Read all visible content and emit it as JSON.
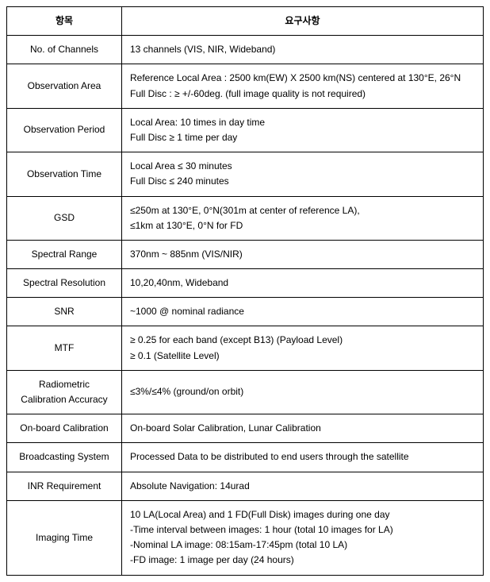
{
  "table": {
    "headers": [
      "항목",
      "요구사항"
    ],
    "rows": [
      {
        "label": "No. of Channels",
        "value": "13 channels (VIS, NIR, Wideband)"
      },
      {
        "label": "Observation Area",
        "value": "Reference Local Area : 2500 km(EW) X 2500 km(NS)   centered at 130°E, 26°N\nFull Disc : ≥ +/-60deg. (full image quality is not required)"
      },
      {
        "label": "Observation Period",
        "value": "Local Area: 10 times in day time\nFull Disc ≥ 1 time   per day"
      },
      {
        "label": "Observation Time",
        "value": "Local Area ≤ 30   minutes\nFull Disc ≤ 240   minutes"
      },
      {
        "label": "GSD",
        "value": "≤250m at   130°E, 0°N(301m at center of reference LA),\n≤1km at   130°E, 0°N for FD"
      },
      {
        "label": "Spectral Range",
        "value": "370nm ~ 885nm (VIS/NIR)"
      },
      {
        "label": "Spectral Resolution",
        "value": "10,20,40nm, Wideband"
      },
      {
        "label": "SNR",
        "value": "~1000 @ nominal radiance"
      },
      {
        "label": "MTF",
        "value": "≥ 0.25 for   each band (except B13) (Payload Level)\n≥ 0.1   (Satellite Level)"
      },
      {
        "label": "Radiometric\nCalibration Accuracy",
        "value": "≤3%/≤4% (ground/on orbit)"
      },
      {
        "label": "On-board Calibration",
        "value": "On-board Solar Calibration, Lunar Calibration"
      },
      {
        "label": "Broadcasting System",
        "value": "Processed Data to be distributed to end users   through the satellite"
      },
      {
        "label": "INR Requirement",
        "value": "Absolute Navigation: 14urad"
      },
      {
        "label": "Imaging Time",
        "value": "10 LA(Local Area) and 1 FD(Full Disk) images during one day\n-Time interval between images: 1 hour (total 10 images for LA)\n-Nominal LA image: 08:15am-17:45pm (total 10 LA)\n-FD image: 1 image per day (24 hours)"
      }
    ]
  }
}
